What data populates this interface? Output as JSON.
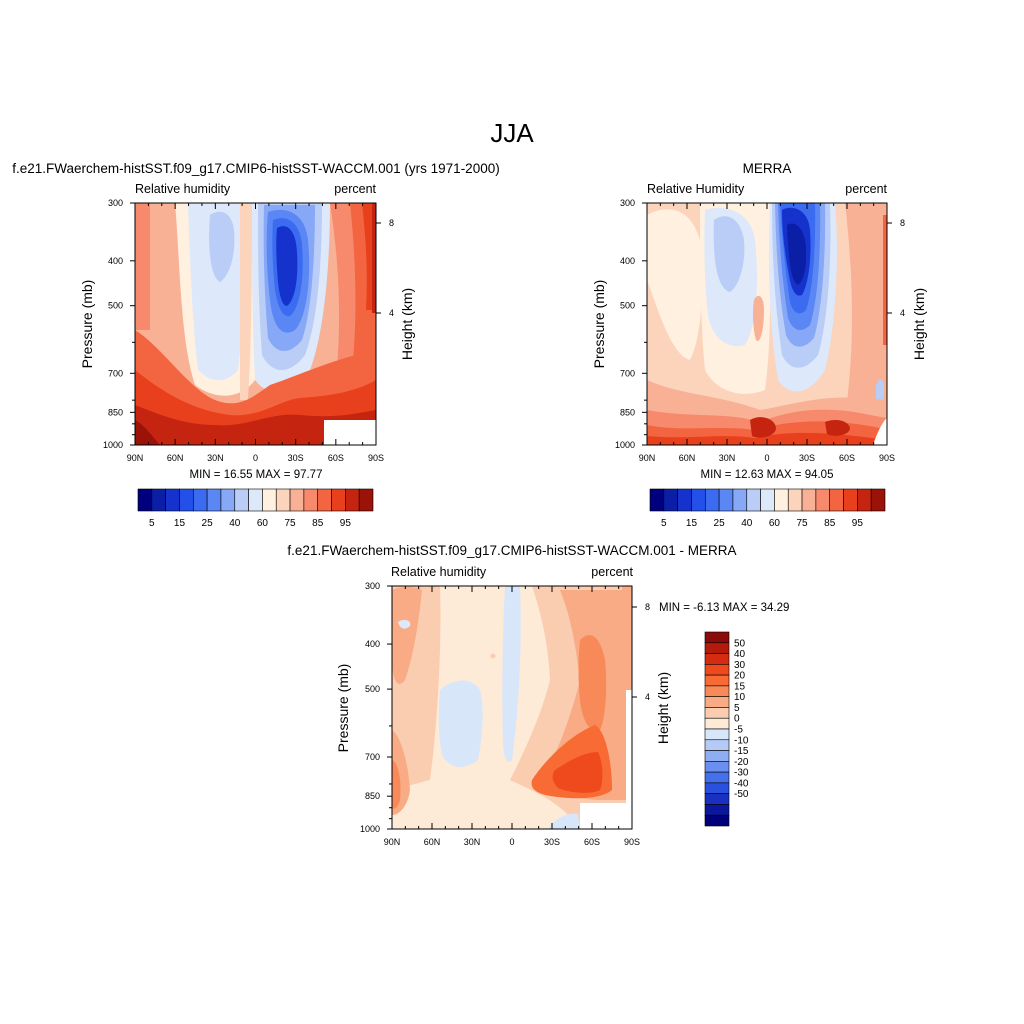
{
  "figure": {
    "title": "JJA"
  },
  "chart_data": [
    {
      "id": "model",
      "type": "heatmap",
      "title": "f.e21.FWaerchem-histSST.f09_g17.CMIP6-histSST-WACCM.001 (yrs 1971-2000)",
      "left_label": "Relative humidity",
      "right_label": "percent",
      "ylabel": "Pressure (mb)",
      "ylabel_right": "Height (km)",
      "x_ticks": [
        "90N",
        "60N",
        "30N",
        "0",
        "30S",
        "60S",
        "90S"
      ],
      "y_ticks": [
        "300",
        "400",
        "500",
        "700",
        "850",
        "1000"
      ],
      "y_ticks_right": [
        "8",
        "4"
      ],
      "stats_text": "MIN =  16.55  MAX =  97.77",
      "min": 16.55,
      "max": 97.77,
      "colorbar": {
        "orientation": "horizontal",
        "levels": [
          5,
          10,
          15,
          20,
          25,
          30,
          40,
          50,
          60,
          70,
          75,
          80,
          85,
          90,
          95
        ],
        "tick_labels": [
          "5",
          "15",
          "25",
          "40",
          "60",
          "75",
          "85",
          "95"
        ],
        "colors": [
          "#00007f",
          "#0b1ea6",
          "#1533cc",
          "#2250e8",
          "#3a6bf1",
          "#5b87f5",
          "#87a8f7",
          "#b9cdf7",
          "#dde8fa",
          "#fff0e0",
          "#fcd3bb",
          "#f9b196",
          "#f78a6c",
          "#f36440",
          "#e8401c",
          "#c42410",
          "#9a1208"
        ]
      }
    },
    {
      "id": "merra",
      "type": "heatmap",
      "title": "MERRA",
      "left_label": "Relative Humidity",
      "right_label": "percent",
      "ylabel": "Pressure (mb)",
      "ylabel_right": "Height (km)",
      "x_ticks": [
        "90N",
        "60N",
        "30N",
        "0",
        "30S",
        "60S",
        "90S"
      ],
      "y_ticks": [
        "300",
        "400",
        "500",
        "700",
        "850",
        "1000"
      ],
      "y_ticks_right": [
        "8",
        "4"
      ],
      "stats_text": "MIN =  12.63  MAX =  94.05",
      "min": 12.63,
      "max": 94.05,
      "colorbar": {
        "orientation": "horizontal",
        "levels": [
          5,
          10,
          15,
          20,
          25,
          30,
          40,
          50,
          60,
          70,
          75,
          80,
          85,
          90,
          95
        ],
        "tick_labels": [
          "5",
          "15",
          "25",
          "40",
          "60",
          "75",
          "85",
          "95"
        ],
        "colors": [
          "#00007f",
          "#0b1ea6",
          "#1533cc",
          "#2250e8",
          "#3a6bf1",
          "#5b87f5",
          "#87a8f7",
          "#b9cdf7",
          "#dde8fa",
          "#fff0e0",
          "#fcd3bb",
          "#f9b196",
          "#f78a6c",
          "#f36440",
          "#e8401c",
          "#c42410",
          "#9a1208"
        ]
      }
    },
    {
      "id": "diff",
      "type": "heatmap",
      "title": "f.e21.FWaerchem-histSST.f09_g17.CMIP6-histSST-WACCM.001 - MERRA",
      "left_label": "Relative humidity",
      "right_label": "percent",
      "ylabel": "Pressure (mb)",
      "ylabel_right": "Height (km)",
      "x_ticks": [
        "90N",
        "60N",
        "30N",
        "0",
        "30S",
        "60S",
        "90S"
      ],
      "y_ticks": [
        "300",
        "400",
        "500",
        "700",
        "850",
        "1000"
      ],
      "y_ticks_right": [
        "8",
        "4"
      ],
      "stats_text": "MIN =  -6.13  MAX =  34.29",
      "min": -6.13,
      "max": 34.29,
      "colorbar": {
        "orientation": "vertical",
        "levels": [
          50,
          40,
          30,
          20,
          15,
          10,
          5,
          0,
          -5,
          -10,
          -15,
          -20,
          -30,
          -40,
          -50
        ],
        "tick_labels": [
          "50",
          "40",
          "30",
          "20",
          "15",
          "10",
          "5",
          "0",
          "-5",
          "-10",
          "-15",
          "-20",
          "-30",
          "-40",
          "-50"
        ],
        "colors": [
          "#8b0a0a",
          "#b31b0c",
          "#d52b10",
          "#ee4a1e",
          "#f86b35",
          "#f88a5a",
          "#f9ab85",
          "#fbcdb0",
          "#fdebd8",
          "#d8e6fa",
          "#b4cbf5",
          "#8eaef1",
          "#6a8ff0",
          "#4470ec",
          "#2a50e0",
          "#1a30c0",
          "#0b179c",
          "#00007a"
        ]
      }
    }
  ]
}
